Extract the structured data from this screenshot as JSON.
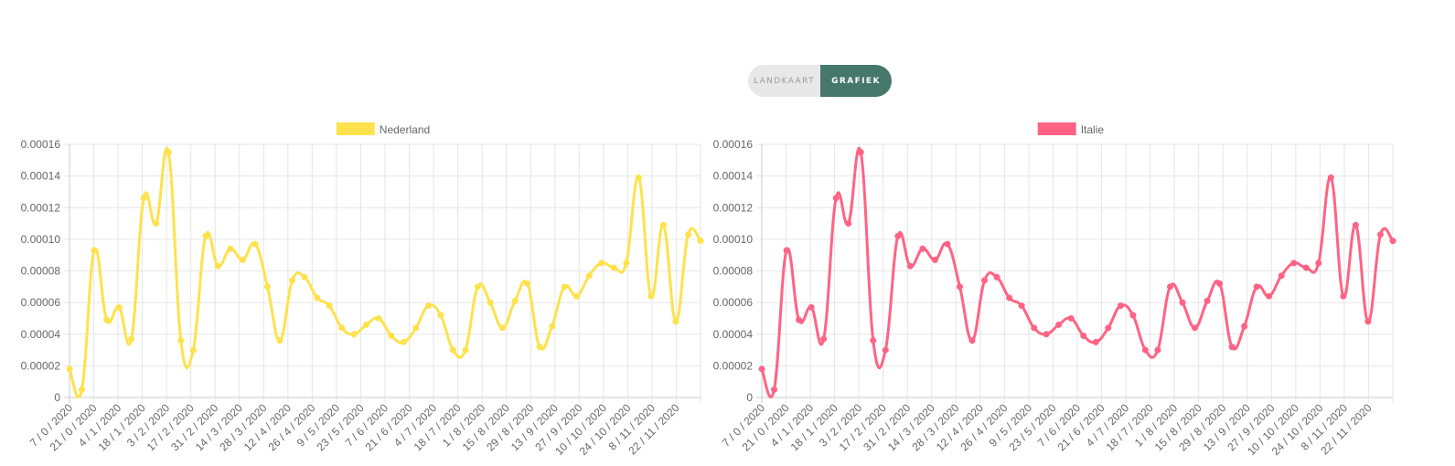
{
  "toggle": {
    "map_label": "LANDKAART",
    "graph_label": "GRAFIEK",
    "active": "GRAFIEK"
  },
  "chart_data": [
    {
      "type": "line",
      "series": [
        {
          "name": "Nederland",
          "color": "#fee24d"
        }
      ],
      "ylim": [
        0,
        0.00016
      ],
      "y_ticks": [
        "0.00016",
        "0.00014",
        "0.00012",
        "0.00010",
        "0.00008",
        "0.00006",
        "0.00004",
        "0.00002",
        "0"
      ],
      "x_tick_labels": [
        "7 / 0 / 2020",
        "21 / 0 / 2020",
        "4 / 1 / 2020",
        "18 / 1 / 2020",
        "3 / 2 / 2020",
        "17 / 2 / 2020",
        "31 / 2 / 2020",
        "14 / 3 / 2020",
        "28 / 3 / 2020",
        "12 / 4 / 2020",
        "26 / 4 / 2020",
        "9 / 5 / 2020",
        "23 / 5 / 2020",
        "7 / 6 / 2020",
        "21 / 6 / 2020",
        "4 / 7 / 2020",
        "18 / 7 / 2020",
        "1 / 8 / 2020",
        "15 / 8 / 2020",
        "29 / 8 / 2020",
        "13 / 9 / 2020",
        "27 / 9 / 2020",
        "10 / 10 / 2020",
        "24 / 10 / 2020",
        "8 / 11 / 2020",
        "22 / 11 / 2020"
      ],
      "values": [
        1.8e-05,
        5e-06,
        9.3e-05,
        4.9e-05,
        5.7e-05,
        3.7e-05,
        0.000126,
        0.00011,
        0.000155,
        3.6e-05,
        3e-05,
        0.000102,
        8.3e-05,
        9.4e-05,
        8.7e-05,
        9.7e-05,
        7e-05,
        3.6e-05,
        7.4e-05,
        7.6e-05,
        6.3e-05,
        5.8e-05,
        4.4e-05,
        4e-05,
        4.6e-05,
        5e-05,
        3.9e-05,
        3.5e-05,
        4.4e-05,
        5.8e-05,
        5.2e-05,
        3e-05,
        3e-05,
        7e-05,
        6e-05,
        4.4e-05,
        6.1e-05,
        7.2e-05,
        3.2e-05,
        4.5e-05,
        7e-05,
        6.4e-05,
        7.7e-05,
        8.5e-05,
        8.2e-05,
        8.5e-05,
        0.000139,
        6.4e-05,
        0.000109,
        4.8e-05,
        0.000103,
        9.9e-05
      ],
      "grid": true
    },
    {
      "type": "line",
      "series": [
        {
          "name": "Italie",
          "color": "#ff6384"
        }
      ],
      "ylim": [
        0,
        0.00016
      ],
      "y_ticks": [
        "0.00016",
        "0.00014",
        "0.00012",
        "0.00010",
        "0.00008",
        "0.00006",
        "0.00004",
        "0.00002",
        "0"
      ],
      "x_tick_labels": [
        "7 / 0 / 2020",
        "21 / 0 / 2020",
        "4 / 1 / 2020",
        "18 / 1 / 2020",
        "3 / 2 / 2020",
        "17 / 2 / 2020",
        "31 / 2 / 2020",
        "14 / 3 / 2020",
        "28 / 3 / 2020",
        "12 / 4 / 2020",
        "26 / 4 / 2020",
        "9 / 5 / 2020",
        "23 / 5 / 2020",
        "7 / 6 / 2020",
        "21 / 6 / 2020",
        "4 / 7 / 2020",
        "18 / 7 / 2020",
        "1 / 8 / 2020",
        "15 / 8 / 2020",
        "29 / 8 / 2020",
        "13 / 9 / 2020",
        "27 / 9 / 2020",
        "10 / 10 / 2020",
        "24 / 10 / 2020",
        "8 / 11 / 2020",
        "22 / 11 / 2020"
      ],
      "values": [
        1.8e-05,
        5e-06,
        9.3e-05,
        4.9e-05,
        5.7e-05,
        3.7e-05,
        0.000126,
        0.00011,
        0.000155,
        3.6e-05,
        3e-05,
        0.000102,
        8.3e-05,
        9.4e-05,
        8.7e-05,
        9.7e-05,
        7e-05,
        3.6e-05,
        7.4e-05,
        7.6e-05,
        6.3e-05,
        5.8e-05,
        4.4e-05,
        4e-05,
        4.6e-05,
        5e-05,
        3.9e-05,
        3.5e-05,
        4.4e-05,
        5.8e-05,
        5.2e-05,
        3e-05,
        3e-05,
        7e-05,
        6e-05,
        4.4e-05,
        6.1e-05,
        7.2e-05,
        3.2e-05,
        4.5e-05,
        7e-05,
        6.4e-05,
        7.7e-05,
        8.5e-05,
        8.2e-05,
        8.5e-05,
        0.000139,
        6.4e-05,
        0.000109,
        4.8e-05,
        0.000103,
        9.9e-05
      ],
      "grid": true
    }
  ]
}
